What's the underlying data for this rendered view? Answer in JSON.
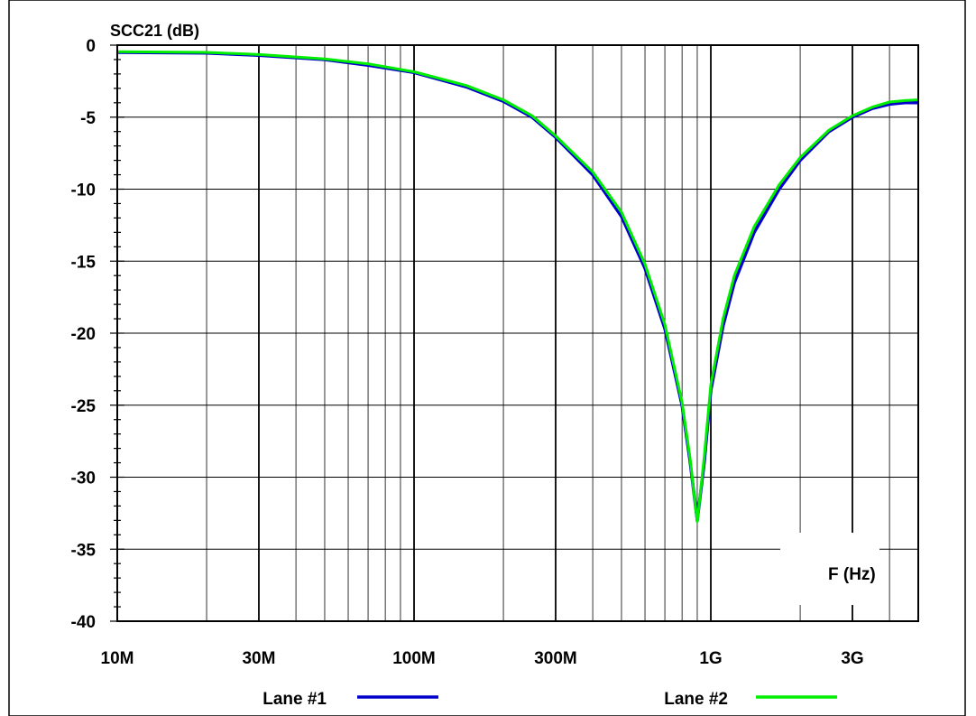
{
  "chart_data": {
    "type": "line",
    "title": "",
    "ylabel": "SCC21 (dB)",
    "xlabel": "F (Hz)",
    "x_scale": "log",
    "xlim": [
      10000000,
      5000000000
    ],
    "ylim": [
      -40,
      0
    ],
    "grid": true,
    "legend_position": "bottom",
    "y_ticks": [
      0,
      -5,
      -10,
      -15,
      -20,
      -25,
      -30,
      -35,
      -40
    ],
    "y_tick_labels": [
      "0",
      "-5",
      "-10",
      "-15",
      "-20",
      "-25",
      "-30",
      "-35",
      "-40"
    ],
    "x_ticks": [
      10000000,
      30000000,
      100000000,
      300000000,
      1000000000,
      3000000000
    ],
    "x_tick_labels": [
      "10M",
      "30M",
      "100M",
      "300M",
      "1G",
      "3G"
    ],
    "series": [
      {
        "name": "Lane #1",
        "color": "#0000cc",
        "x": [
          10000000,
          20000000,
          30000000,
          50000000,
          70000000,
          100000000,
          150000000,
          200000000,
          250000000,
          300000000,
          400000000,
          500000000,
          600000000,
          700000000,
          800000000,
          850000000,
          900000000,
          950000000,
          1000000000,
          1100000000,
          1200000000,
          1400000000,
          1700000000,
          2000000000,
          2500000000,
          3000000000,
          3500000000,
          4000000000,
          4500000000,
          5000000000
        ],
        "y": [
          -0.5,
          -0.55,
          -0.7,
          -1.0,
          -1.4,
          -1.9,
          -2.9,
          -3.9,
          -5.0,
          -6.4,
          -9.0,
          -11.9,
          -15.5,
          -19.7,
          -25.0,
          -28.8,
          -33.0,
          -29.0,
          -24.0,
          -19.5,
          -16.5,
          -13.0,
          -10.0,
          -8.0,
          -6.0,
          -5.0,
          -4.4,
          -4.1,
          -4.0,
          -4.0
        ]
      },
      {
        "name": "Lane #2",
        "color": "#00ee00",
        "x": [
          10000000,
          20000000,
          30000000,
          50000000,
          70000000,
          100000000,
          150000000,
          200000000,
          250000000,
          300000000,
          400000000,
          500000000,
          600000000,
          700000000,
          800000000,
          850000000,
          900000000,
          950000000,
          1000000000,
          1100000000,
          1200000000,
          1400000000,
          1700000000,
          2000000000,
          2500000000,
          3000000000,
          3500000000,
          4000000000,
          4500000000,
          5000000000
        ],
        "y": [
          -0.45,
          -0.5,
          -0.65,
          -0.95,
          -1.3,
          -1.85,
          -2.8,
          -3.8,
          -4.9,
          -6.3,
          -8.8,
          -11.6,
          -15.2,
          -19.4,
          -24.8,
          -28.6,
          -33.1,
          -28.6,
          -23.6,
          -19.0,
          -16.0,
          -12.6,
          -9.7,
          -7.8,
          -5.9,
          -4.9,
          -4.3,
          -3.95,
          -3.85,
          -3.8
        ]
      }
    ]
  }
}
